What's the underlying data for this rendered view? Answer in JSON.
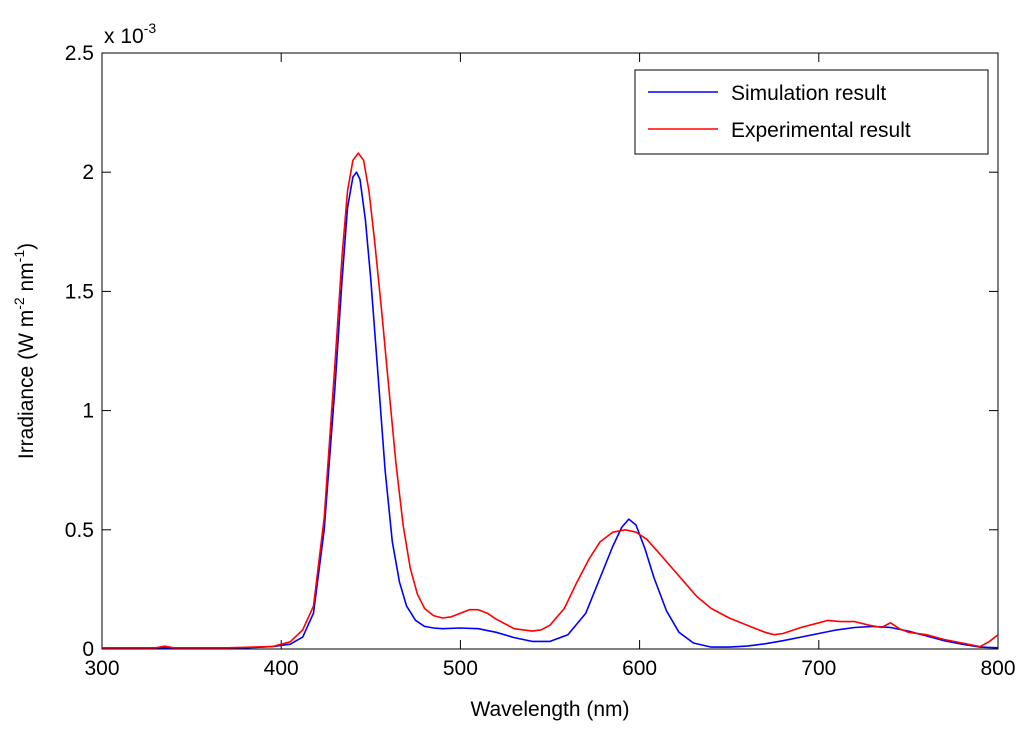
{
  "chart_data": {
    "type": "line",
    "title": "",
    "xlabel": "Wavelength (nm)",
    "ylabel_main": "Irradiance (W m",
    "ylabel_exp1": "-2",
    "ylabel_mid": " nm",
    "ylabel_exp2": "-1",
    "ylabel_end": ")",
    "multiplier_base": "x 10",
    "multiplier_exp": "-3",
    "xlim": [
      300,
      800
    ],
    "ylim": [
      0,
      2.5
    ],
    "xticks": [
      300,
      400,
      500,
      600,
      700,
      800
    ],
    "xtick_labels": [
      "300",
      "400",
      "500",
      "600",
      "700",
      "800"
    ],
    "yticks": [
      0,
      0.5,
      1,
      1.5,
      2,
      2.5
    ],
    "ytick_labels": [
      "0",
      "0.5",
      "1",
      "1.5",
      "2",
      "2.5"
    ],
    "grid": false,
    "legend_position": "top-right",
    "series": [
      {
        "name": "Simulation result",
        "color": "#0000ff",
        "x": [
          300,
          340,
          380,
          395,
          405,
          412,
          418,
          424,
          430,
          434,
          437,
          440,
          442,
          444,
          447,
          450,
          454,
          458,
          462,
          466,
          470,
          475,
          480,
          485,
          490,
          500,
          510,
          520,
          530,
          540,
          550,
          560,
          570,
          578,
          585,
          590,
          594,
          598,
          603,
          608,
          615,
          622,
          630,
          640,
          650,
          660,
          670,
          680,
          690,
          700,
          710,
          720,
          730,
          740,
          750,
          760,
          770,
          780,
          790,
          800
        ],
        "values": [
          0.005,
          0.005,
          0.005,
          0.01,
          0.02,
          0.05,
          0.15,
          0.5,
          1.1,
          1.55,
          1.85,
          1.98,
          2.0,
          1.97,
          1.8,
          1.55,
          1.15,
          0.75,
          0.45,
          0.28,
          0.18,
          0.12,
          0.095,
          0.088,
          0.085,
          0.088,
          0.085,
          0.07,
          0.048,
          0.032,
          0.032,
          0.06,
          0.15,
          0.3,
          0.43,
          0.51,
          0.545,
          0.52,
          0.42,
          0.3,
          0.16,
          0.07,
          0.025,
          0.008,
          0.008,
          0.012,
          0.022,
          0.035,
          0.05,
          0.065,
          0.08,
          0.09,
          0.095,
          0.09,
          0.075,
          0.055,
          0.035,
          0.02,
          0.008,
          0.005
        ]
      },
      {
        "name": "Experimental result",
        "color": "#ff0000",
        "x": [
          300,
          330,
          335,
          340,
          370,
          395,
          405,
          412,
          418,
          424,
          430,
          434,
          437,
          440,
          443,
          446,
          449,
          452,
          456,
          460,
          464,
          468,
          472,
          476,
          480,
          485,
          490,
          495,
          500,
          505,
          510,
          515,
          520,
          530,
          540,
          545,
          550,
          558,
          565,
          572,
          578,
          585,
          592,
          598,
          604,
          610,
          618,
          625,
          632,
          640,
          650,
          660,
          670,
          675,
          680,
          690,
          700,
          705,
          712,
          720,
          728,
          735,
          740,
          745,
          750,
          760,
          770,
          780,
          790,
          795,
          800
        ],
        "values": [
          0.005,
          0.005,
          0.012,
          0.005,
          0.005,
          0.01,
          0.03,
          0.08,
          0.18,
          0.55,
          1.2,
          1.65,
          1.92,
          2.05,
          2.08,
          2.05,
          1.92,
          1.72,
          1.42,
          1.1,
          0.78,
          0.52,
          0.34,
          0.23,
          0.17,
          0.14,
          0.13,
          0.135,
          0.15,
          0.165,
          0.165,
          0.15,
          0.125,
          0.085,
          0.075,
          0.08,
          0.1,
          0.17,
          0.28,
          0.38,
          0.45,
          0.49,
          0.5,
          0.49,
          0.46,
          0.41,
          0.34,
          0.28,
          0.22,
          0.17,
          0.13,
          0.1,
          0.07,
          0.06,
          0.065,
          0.09,
          0.11,
          0.12,
          0.115,
          0.115,
          0.1,
          0.09,
          0.11,
          0.085,
          0.07,
          0.06,
          0.04,
          0.025,
          0.01,
          0.03,
          0.06
        ]
      }
    ]
  }
}
